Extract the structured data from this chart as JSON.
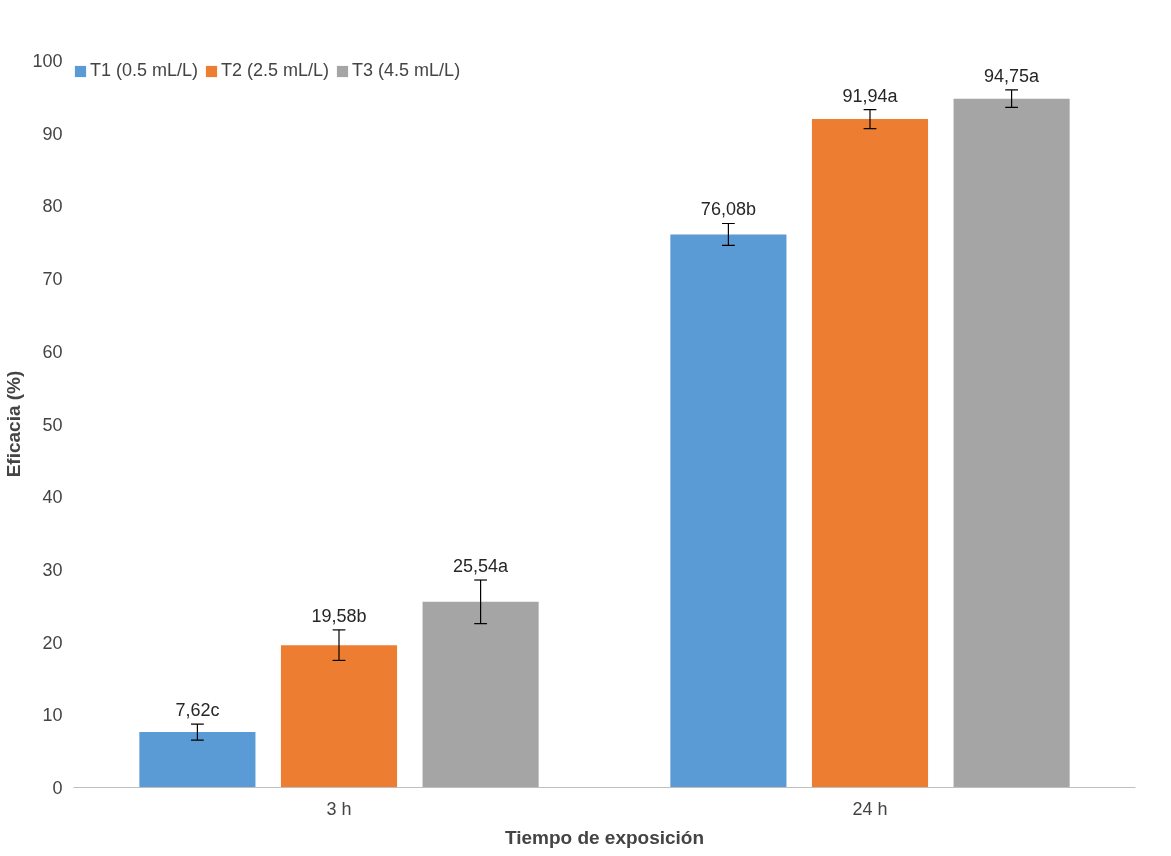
{
  "chart_data": {
    "type": "bar",
    "xlabel": "Tiempo de exposición",
    "ylabel": "Eficacia (%)",
    "categories": [
      "3 h",
      "24 h"
    ],
    "series": [
      {
        "name": "T1 (0.5 mL/L)",
        "color": "#5b9bd5",
        "values": [
          7.62,
          76.08
        ],
        "errors": [
          1.1,
          1.5
        ],
        "value_labels": [
          "7,62c",
          "76,08b"
        ]
      },
      {
        "name": "T2 (2.5 mL/L)",
        "color": "#ed7d31",
        "values": [
          19.58,
          91.94
        ],
        "errors": [
          2.1,
          1.3
        ],
        "value_labels": [
          "19,58b",
          "91,94a"
        ]
      },
      {
        "name": "T3 (4.5 mL/L)",
        "color": "#a5a5a5",
        "values": [
          25.54,
          94.75
        ],
        "errors": [
          3.0,
          1.2
        ],
        "value_labels": [
          "25,54a",
          "94,75a"
        ]
      }
    ],
    "ylim": [
      0,
      100
    ],
    "yticks": [
      0,
      10,
      20,
      30,
      40,
      50,
      60,
      70,
      80,
      90,
      100
    ],
    "grid": false,
    "legend": "top left"
  }
}
